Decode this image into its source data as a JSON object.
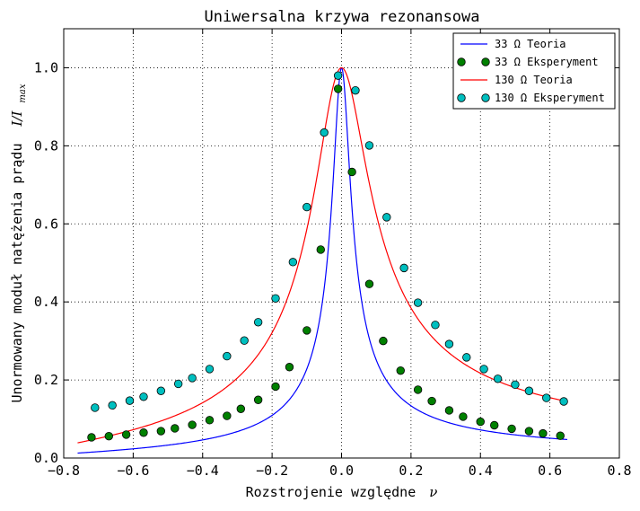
{
  "chart_data": {
    "type": "line",
    "title": "Uniwersalna krzywa rezonansowa",
    "xlabel": "Rozstrojenie względne",
    "xlabel_symbol": "ν",
    "ylabel": "Unormowany moduł natężenia prądu",
    "ylabel_symbol": "I/I",
    "ylabel_symbol_sub": "max",
    "xlim": [
      -0.8,
      0.8
    ],
    "ylim": [
      0.0,
      1.1
    ],
    "x_ticks": [
      -0.8,
      -0.6,
      -0.4,
      -0.2,
      0.0,
      0.2,
      0.4,
      0.6,
      0.8
    ],
    "x_tick_labels": [
      "−0.8",
      "−0.6",
      "−0.4",
      "−0.2",
      "0.0",
      "0.2",
      "0.4",
      "0.6",
      "0.8"
    ],
    "y_ticks": [
      0.0,
      0.2,
      0.4,
      0.6,
      0.8,
      1.0
    ],
    "y_tick_labels": [
      "0.0",
      "0.2",
      "0.4",
      "0.6",
      "0.8",
      "1.0"
    ],
    "grid": true,
    "grid_style": "dotted",
    "legend_position": "top-right",
    "series": [
      {
        "name": "33 Ω Teoria",
        "kind": "line",
        "color": "#0000ff",
        "model": {
          "form": "1/sqrt(1+(Q*nu*(2+nu)/(1+nu))^2)",
          "Q": 20.2
        },
        "x_range": [
          -0.76,
          0.65
        ]
      },
      {
        "name": "33 Ω Eksperyment",
        "kind": "markers",
        "color": "#008000",
        "x": [
          -0.72,
          -0.67,
          -0.62,
          -0.57,
          -0.52,
          -0.48,
          -0.43,
          -0.38,
          -0.33,
          -0.29,
          -0.24,
          -0.19,
          -0.15,
          -0.1,
          -0.06,
          -0.01,
          0.03,
          0.08,
          0.12,
          0.17,
          0.22,
          0.26,
          0.31,
          0.35,
          0.4,
          0.44,
          0.49,
          0.54,
          0.58,
          0.63
        ],
        "y": [
          0.053,
          0.056,
          0.06,
          0.065,
          0.069,
          0.076,
          0.085,
          0.097,
          0.108,
          0.126,
          0.149,
          0.183,
          0.233,
          0.327,
          0.534,
          0.946,
          0.733,
          0.446,
          0.3,
          0.224,
          0.175,
          0.146,
          0.122,
          0.106,
          0.093,
          0.084,
          0.075,
          0.069,
          0.063,
          0.057
        ]
      },
      {
        "name": "130 Ω Teoria",
        "kind": "line",
        "color": "#ff0000",
        "model": {
          "form": "1/sqrt(1+(Q*nu*(2+nu)/(1+nu))^2)",
          "Q": 6.55
        },
        "x_range": [
          -0.76,
          0.65
        ]
      },
      {
        "name": "130 Ω Eksperyment",
        "kind": "markers",
        "color": "#00bfbf",
        "x": [
          -0.71,
          -0.66,
          -0.61,
          -0.57,
          -0.52,
          -0.47,
          -0.43,
          -0.38,
          -0.33,
          -0.28,
          -0.24,
          -0.19,
          -0.14,
          -0.1,
          -0.05,
          -0.01,
          0.04,
          0.08,
          0.13,
          0.18,
          0.22,
          0.27,
          0.31,
          0.36,
          0.41,
          0.45,
          0.5,
          0.54,
          0.59,
          0.64
        ],
        "y": [
          0.129,
          0.135,
          0.147,
          0.157,
          0.172,
          0.19,
          0.205,
          0.228,
          0.261,
          0.301,
          0.348,
          0.409,
          0.502,
          0.643,
          0.834,
          0.98,
          0.942,
          0.801,
          0.617,
          0.487,
          0.398,
          0.341,
          0.292,
          0.258,
          0.228,
          0.203,
          0.188,
          0.172,
          0.154,
          0.145
        ]
      }
    ]
  }
}
